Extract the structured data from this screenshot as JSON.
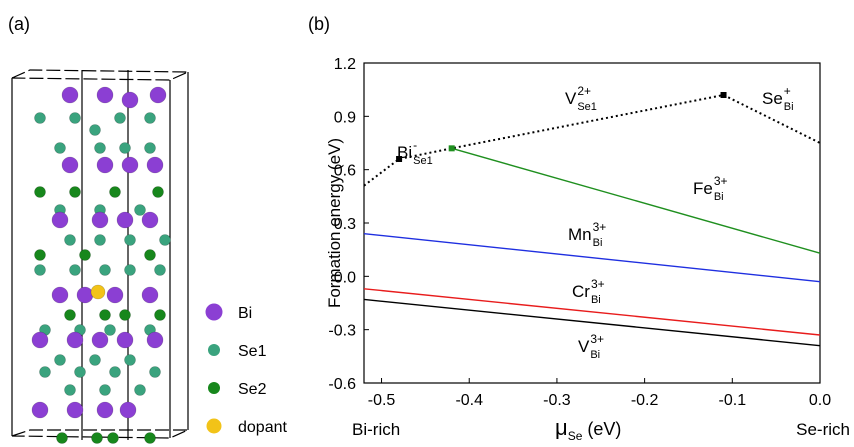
{
  "panel_a": {
    "label": "(a)",
    "legend": [
      {
        "label": "Bi",
        "color": "#8b3fd3"
      },
      {
        "label": "Se1",
        "color": "#3aa37e"
      },
      {
        "label": "Se2",
        "color": "#17871c"
      },
      {
        "label": "dopant",
        "color": "#f2c318"
      }
    ]
  },
  "chart_data": {
    "type": "line",
    "panel_label": "(b)",
    "x_label": {
      "text": "μ",
      "sub": "Se",
      "unit": "(eV)"
    },
    "y_label": "Formation energy (eV)",
    "x_end_labels": [
      "Bi-rich",
      "Se-rich"
    ],
    "xlim": [
      -0.52,
      0
    ],
    "xticks": [
      -0.5,
      -0.4,
      -0.3,
      -0.2,
      -0.1,
      {
        "value": 0,
        "label": "0.0"
      }
    ],
    "ylim": [
      -0.6,
      1.2
    ],
    "yticks": [
      -0.6,
      -0.3,
      {
        "value": 0,
        "label": "0.0"
      },
      0.3,
      0.6,
      0.9,
      1.2
    ],
    "series": [
      {
        "color": "#000000",
        "style": "dotted",
        "x": [
          -0.52,
          -0.48,
          -0.42,
          -0.11,
          0
        ],
        "values": [
          0.51,
          0.66,
          0.72,
          1.02,
          0.75
        ],
        "markers": [
          false,
          true,
          false,
          true,
          false
        ]
      },
      {
        "color": "#1f8f1f",
        "style": "solid",
        "x": [
          -0.42,
          0
        ],
        "values": [
          0.72,
          0.13
        ],
        "markers": [
          true,
          false
        ]
      },
      {
        "color": "#1f2fe0",
        "style": "solid",
        "x": [
          -0.52,
          0
        ],
        "values": [
          0.24,
          -0.03
        ],
        "markers": [
          false,
          false
        ]
      },
      {
        "color": "#e81c1c",
        "style": "solid",
        "x": [
          -0.52,
          0
        ],
        "values": [
          -0.07,
          -0.33
        ],
        "markers": [
          false,
          false
        ]
      },
      {
        "color": "#000000",
        "style": "solid",
        "x": [
          -0.52,
          0
        ],
        "values": [
          -0.13,
          -0.39
        ],
        "markers": [
          false,
          false
        ]
      }
    ],
    "annotations": [
      {
        "text": "Bi",
        "sup": "-",
        "sub": "Se1"
      },
      {
        "text": "V",
        "sup": "2+",
        "sub": "Se1"
      },
      {
        "text": "Se",
        "sup": "+",
        "sub": "Bi"
      },
      {
        "text": "Fe",
        "sup": "3+",
        "sub": "Bi"
      },
      {
        "text": "Mn",
        "sup": "3+",
        "sub": "Bi"
      },
      {
        "text": "Cr",
        "sup": "3+",
        "sub": "Bi"
      },
      {
        "text": "V",
        "sup": "3+",
        "sub": "Bi"
      }
    ]
  }
}
